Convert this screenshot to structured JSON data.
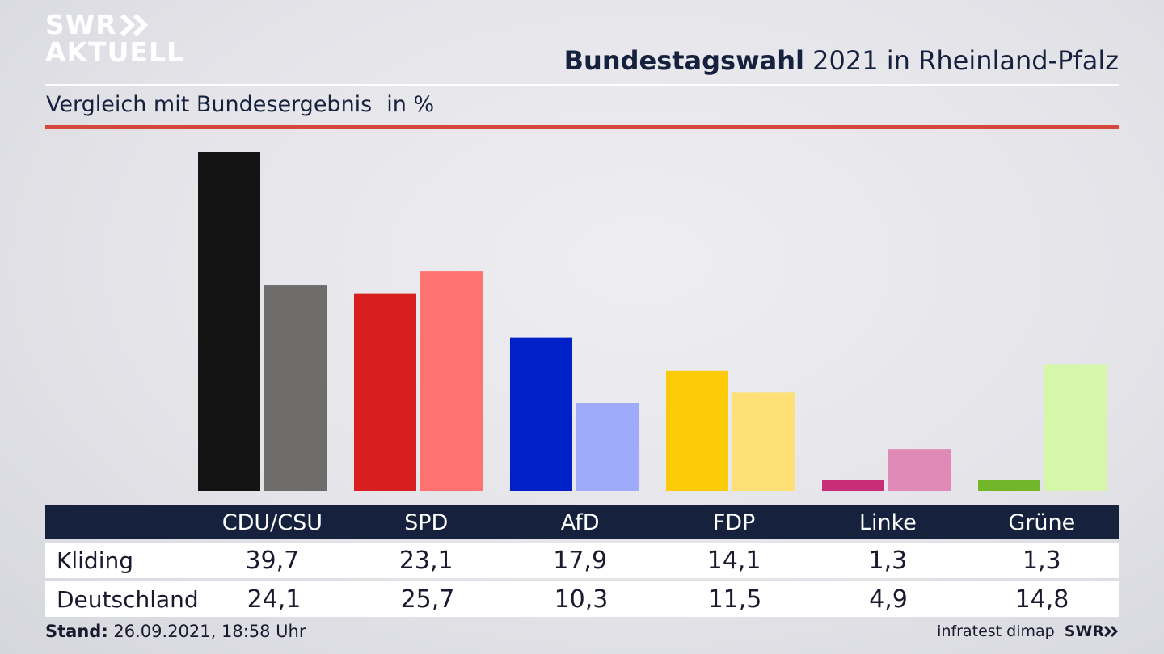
{
  "logo": {
    "line1": "SWR",
    "line2": "AKTUELL"
  },
  "header": {
    "title_bold": "Bundestagswahl",
    "title_rest": " 2021 in Rheinland-Pfalz"
  },
  "subtitle": {
    "text": "Vergleich mit Bundesergebnis",
    "unit": "in %"
  },
  "table": {
    "parties": [
      "CDU/CSU",
      "SPD",
      "AfD",
      "FDP",
      "Linke",
      "Grüne"
    ],
    "rows": [
      {
        "label": "Kliding",
        "values": [
          "39,7",
          "23,1",
          "17,9",
          "14,1",
          "1,3",
          "1,3"
        ]
      },
      {
        "label": "Deutschland",
        "values": [
          "24,1",
          "25,7",
          "10,3",
          "11,5",
          "4,9",
          "14,8"
        ]
      }
    ]
  },
  "footer": {
    "stand_label": "Stand:",
    "stand_value": " 26.09.2021, 18:58 Uhr",
    "source": "infratest dimap",
    "brand": "SWR"
  },
  "chart_data": {
    "type": "bar",
    "categories": [
      "CDU/CSU",
      "SPD",
      "AfD",
      "FDP",
      "Linke",
      "Grüne"
    ],
    "series": [
      {
        "name": "Kliding",
        "values": [
          39.7,
          23.1,
          17.9,
          14.1,
          1.3,
          1.3
        ],
        "colors": [
          "#141414",
          "#d81f1f",
          "#0020c8",
          "#fdca08",
          "#c72d78",
          "#72b62a"
        ]
      },
      {
        "name": "Deutschland",
        "values": [
          24.1,
          25.7,
          10.3,
          11.5,
          4.9,
          14.8
        ],
        "colors": [
          "#6f6d6b",
          "#fe7370",
          "#9eaafc",
          "#fde176",
          "#e08ab8",
          "#d6f6aa"
        ]
      }
    ],
    "ylim": [
      0,
      40
    ]
  }
}
